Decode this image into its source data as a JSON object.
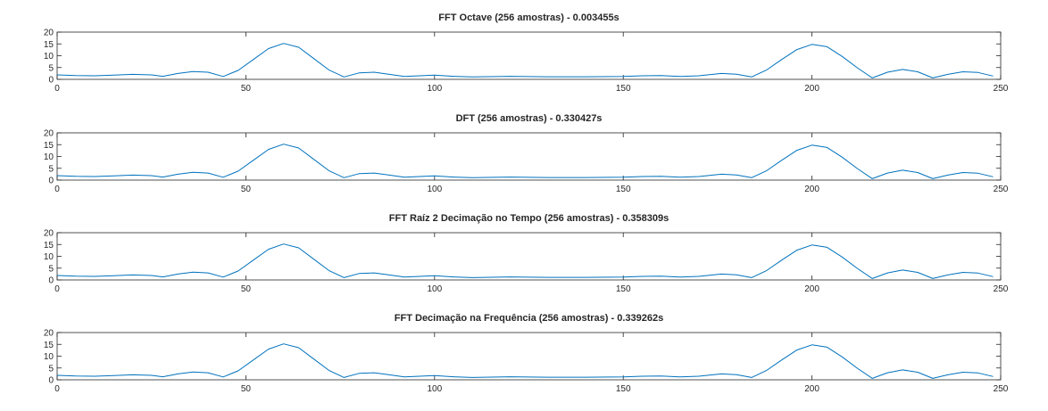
{
  "chart_data": [
    {
      "type": "line",
      "title": "FFT Octave (256 amostras) - 0.003455s",
      "xlim": [
        0,
        250
      ],
      "ylim": [
        0,
        20
      ],
      "xticks": [
        "0",
        "50",
        "100",
        "150",
        "200",
        "250"
      ],
      "yticks": [
        "0",
        "5",
        "10",
        "15",
        "20"
      ],
      "grid": false,
      "line_color": "#0072bd",
      "series": [
        {
          "x": [
            0,
            5,
            10,
            15,
            20,
            25,
            28,
            32,
            36,
            40,
            44,
            48,
            52,
            56,
            60,
            64,
            68,
            72,
            76,
            80,
            84,
            88,
            92,
            96,
            100,
            105,
            110,
            120,
            130,
            140,
            150,
            155,
            160,
            165,
            170,
            176,
            180,
            184,
            188,
            192,
            196,
            200,
            204,
            208,
            212,
            216,
            220,
            224,
            228,
            232,
            236,
            240,
            244,
            248
          ],
          "y": [
            1.9,
            1.6,
            1.5,
            1.8,
            2.1,
            1.9,
            1.3,
            2.5,
            3.3,
            3.0,
            1.2,
            3.8,
            8.4,
            13.0,
            15.2,
            13.6,
            8.8,
            4.0,
            1.0,
            2.7,
            3.0,
            2.1,
            1.2,
            1.5,
            1.8,
            1.3,
            1.0,
            1.3,
            1.1,
            1.1,
            1.2,
            1.5,
            1.6,
            1.2,
            1.5,
            2.5,
            2.2,
            1.0,
            4.0,
            8.4,
            12.6,
            14.8,
            13.8,
            9.7,
            4.9,
            0.6,
            3.0,
            4.2,
            3.2,
            0.6,
            2.1,
            3.2,
            2.9,
            1.4
          ]
        }
      ]
    },
    {
      "type": "line",
      "title": "DFT (256 amostras) - 0.330427s",
      "xlim": [
        0,
        250
      ],
      "ylim": [
        0,
        20
      ],
      "xticks": [
        "0",
        "50",
        "100",
        "150",
        "200",
        "250"
      ],
      "yticks": [
        "0",
        "5",
        "10",
        "15",
        "20"
      ],
      "grid": false,
      "line_color": "#0072bd",
      "series": [
        {
          "x": [
            0,
            5,
            10,
            15,
            20,
            25,
            28,
            32,
            36,
            40,
            44,
            48,
            52,
            56,
            60,
            64,
            68,
            72,
            76,
            80,
            84,
            88,
            92,
            96,
            100,
            105,
            110,
            120,
            130,
            140,
            150,
            155,
            160,
            165,
            170,
            176,
            180,
            184,
            188,
            192,
            196,
            200,
            204,
            208,
            212,
            216,
            220,
            224,
            228,
            232,
            236,
            240,
            244,
            248
          ],
          "y": [
            1.9,
            1.6,
            1.5,
            1.8,
            2.1,
            1.9,
            1.3,
            2.5,
            3.3,
            3.0,
            1.2,
            3.8,
            8.4,
            13.0,
            15.2,
            13.6,
            8.8,
            4.0,
            1.0,
            2.7,
            3.0,
            2.1,
            1.2,
            1.5,
            1.8,
            1.3,
            1.0,
            1.3,
            1.1,
            1.1,
            1.2,
            1.5,
            1.6,
            1.2,
            1.5,
            2.5,
            2.2,
            1.0,
            4.0,
            8.4,
            12.6,
            14.8,
            13.8,
            9.7,
            4.9,
            0.6,
            3.0,
            4.2,
            3.2,
            0.6,
            2.1,
            3.2,
            2.9,
            1.4
          ]
        }
      ]
    },
    {
      "type": "line",
      "title": "FFT Raíz 2 Decimação no Tempo (256 amostras) - 0.358309s",
      "xlim": [
        0,
        250
      ],
      "ylim": [
        0,
        20
      ],
      "xticks": [
        "0",
        "50",
        "100",
        "150",
        "200",
        "250"
      ],
      "yticks": [
        "0",
        "5",
        "10",
        "15",
        "20"
      ],
      "grid": false,
      "line_color": "#0072bd",
      "series": [
        {
          "x": [
            0,
            5,
            10,
            15,
            20,
            25,
            28,
            32,
            36,
            40,
            44,
            48,
            52,
            56,
            60,
            64,
            68,
            72,
            76,
            80,
            84,
            88,
            92,
            96,
            100,
            105,
            110,
            120,
            130,
            140,
            150,
            155,
            160,
            165,
            170,
            176,
            180,
            184,
            188,
            192,
            196,
            200,
            204,
            208,
            212,
            216,
            220,
            224,
            228,
            232,
            236,
            240,
            244,
            248
          ],
          "y": [
            1.9,
            1.6,
            1.5,
            1.8,
            2.1,
            1.9,
            1.3,
            2.5,
            3.3,
            3.0,
            1.2,
            3.8,
            8.4,
            13.0,
            15.2,
            13.6,
            8.8,
            4.0,
            1.0,
            2.7,
            3.0,
            2.1,
            1.2,
            1.5,
            1.8,
            1.3,
            1.0,
            1.3,
            1.1,
            1.1,
            1.2,
            1.5,
            1.6,
            1.2,
            1.5,
            2.5,
            2.2,
            1.0,
            4.0,
            8.4,
            12.6,
            14.8,
            13.8,
            9.7,
            4.9,
            0.6,
            3.0,
            4.2,
            3.2,
            0.6,
            2.1,
            3.2,
            2.9,
            1.4
          ]
        }
      ]
    },
    {
      "type": "line",
      "title": "FFT Decimação na Frequência (256 amostras) - 0.339262s",
      "xlim": [
        0,
        250
      ],
      "ylim": [
        0,
        20
      ],
      "xticks": [
        "0",
        "50",
        "100",
        "150",
        "200",
        "250"
      ],
      "yticks": [
        "0",
        "5",
        "10",
        "15",
        "20"
      ],
      "grid": false,
      "line_color": "#0072bd",
      "series": [
        {
          "x": [
            0,
            5,
            10,
            15,
            20,
            25,
            28,
            32,
            36,
            40,
            44,
            48,
            52,
            56,
            60,
            64,
            68,
            72,
            76,
            80,
            84,
            88,
            92,
            96,
            100,
            105,
            110,
            120,
            130,
            140,
            150,
            155,
            160,
            165,
            170,
            176,
            180,
            184,
            188,
            192,
            196,
            200,
            204,
            208,
            212,
            216,
            220,
            224,
            228,
            232,
            236,
            240,
            244,
            248
          ],
          "y": [
            1.9,
            1.6,
            1.5,
            1.8,
            2.1,
            1.9,
            1.3,
            2.5,
            3.3,
            3.0,
            1.2,
            3.8,
            8.4,
            13.0,
            15.2,
            13.6,
            8.8,
            4.0,
            1.0,
            2.7,
            3.0,
            2.1,
            1.2,
            1.5,
            1.8,
            1.3,
            1.0,
            1.3,
            1.1,
            1.1,
            1.2,
            1.5,
            1.6,
            1.2,
            1.5,
            2.5,
            2.2,
            1.0,
            4.0,
            8.4,
            12.6,
            14.8,
            13.8,
            9.7,
            4.9,
            0.6,
            3.0,
            4.2,
            3.2,
            0.6,
            2.1,
            3.2,
            2.9,
            1.4
          ]
        }
      ]
    }
  ]
}
